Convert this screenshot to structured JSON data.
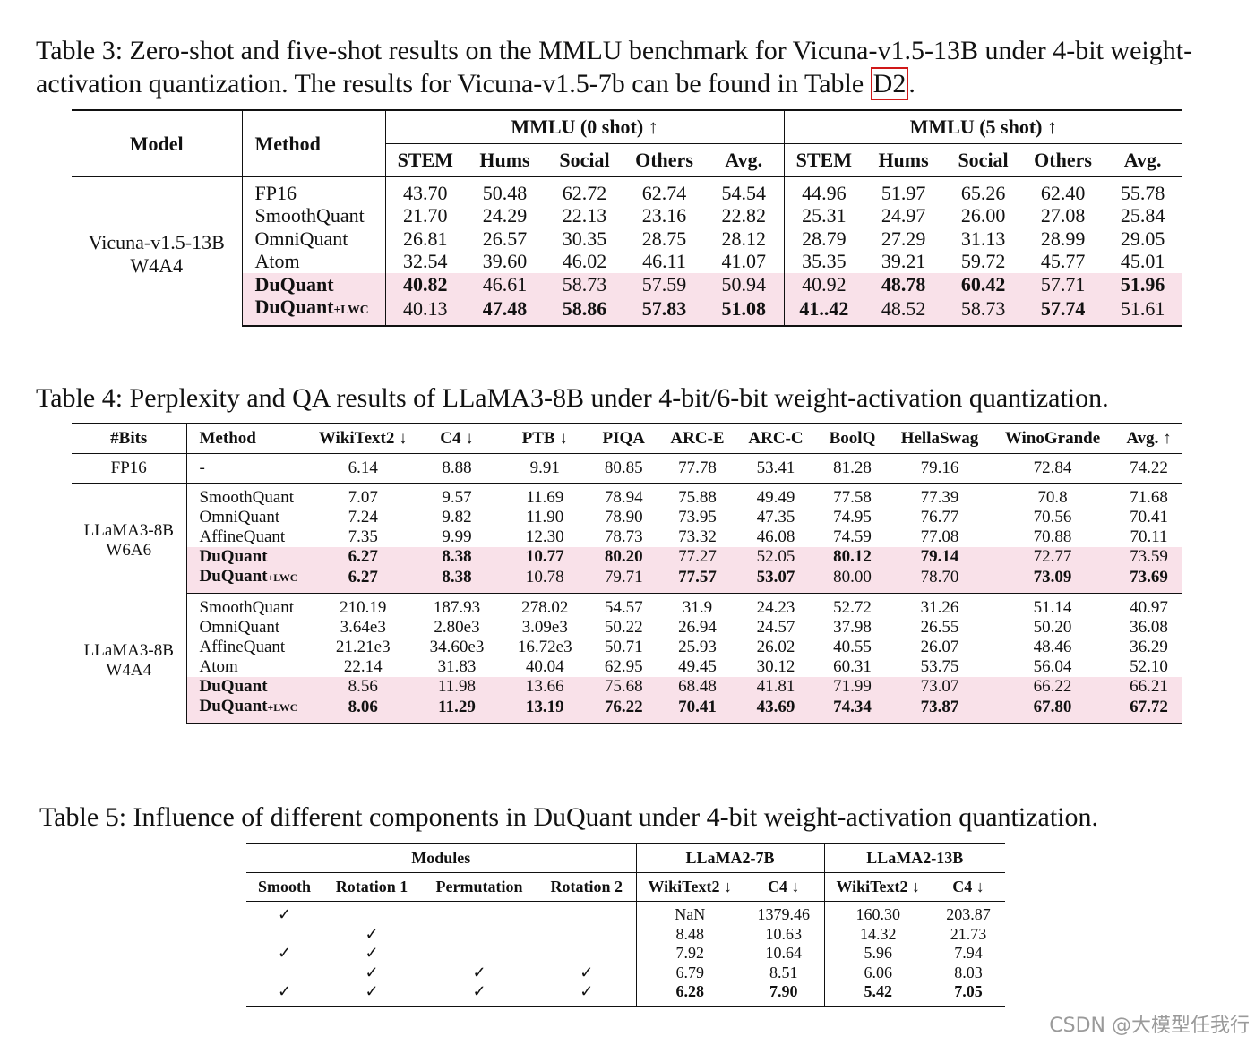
{
  "tables": [
    {
      "caption": "Table 3: Zero-shot and five-shot results on the MMLU benchmark for Vicuna-v1.5-13B under 4-bit weight-activation quantization. The results for Vicuna-v1.5-7b can be found in Table ",
      "caption_link": "D2",
      "caption_end": ".",
      "header": {
        "model": "Model",
        "method": "Method",
        "groups": [
          "MMLU (0 shot) ↑",
          "MMLU (5 shot) ↑"
        ],
        "columns": [
          "STEM",
          "Hums",
          "Social",
          "Others",
          "Avg.",
          "STEM",
          "Hums",
          "Social",
          "Others",
          "Avg."
        ]
      },
      "groups": [
        {
          "label": [
            "Vicuna-v1.5-13B",
            "W4A4"
          ],
          "rows": [
            {
              "method": "FP16",
              "cells": [
                "43.70",
                "50.48",
                "62.72",
                "62.74",
                "54.54",
                "44.96",
                "51.97",
                "65.26",
                "62.40",
                "55.78"
              ]
            },
            {
              "method": "SmoothQuant",
              "cells": [
                "21.70",
                "24.29",
                "22.13",
                "23.16",
                "22.82",
                "25.31",
                "24.97",
                "26.00",
                "27.08",
                "25.84"
              ]
            },
            {
              "method": "OmniQuant",
              "cells": [
                "26.81",
                "26.57",
                "30.35",
                "28.75",
                "28.12",
                "28.79",
                "27.29",
                "31.13",
                "28.99",
                "29.05"
              ]
            },
            {
              "method": "Atom",
              "cells": [
                "32.54",
                "39.60",
                "46.02",
                "46.11",
                "41.07",
                "35.35",
                "39.21",
                "59.72",
                "45.77",
                "45.01"
              ]
            },
            {
              "method": "DuQuant",
              "highlight": true,
              "cells": [
                {
                  "text": "40.82",
                  "bold": true
                },
                "46.61",
                "58.73",
                "57.59",
                "50.94",
                "40.92",
                {
                  "text": "48.78",
                  "bold": true
                },
                {
                  "text": "60.42",
                  "bold": true
                },
                "57.71",
                {
                  "text": "51.96",
                  "bold": true
                }
              ]
            },
            {
              "method": "DuQuant",
              "method_suffix": "+LWC",
              "highlight": true,
              "cells": [
                "40.13",
                {
                  "text": "47.48",
                  "bold": true
                },
                {
                  "text": "58.86",
                  "bold": true
                },
                {
                  "text": "57.83",
                  "bold": true
                },
                {
                  "text": "51.08",
                  "bold": true
                },
                {
                  "text": "41..42",
                  "bold": true
                },
                "48.52",
                "58.73",
                {
                  "text": "57.74",
                  "bold": true
                },
                "51.61"
              ]
            }
          ]
        }
      ]
    },
    {
      "caption": "Table 4: Perplexity and QA results of LLaMA3-8B under 4-bit/6-bit weight-activation quantization.",
      "header": {
        "model": "#Bits",
        "method": "Method",
        "columns": [
          "WikiText2 ↓",
          "C4 ↓",
          "PTB ↓",
          "PIQA",
          "ARC-E",
          "ARC-C",
          "BoolQ",
          "HellaSwag",
          "WinoGrande",
          "Avg. ↑"
        ]
      },
      "groups": [
        {
          "label": [
            "FP16"
          ],
          "rows": [
            {
              "method": "-",
              "cells": [
                "6.14",
                "8.88",
                "9.91",
                "80.85",
                "77.78",
                "53.41",
                "81.28",
                "79.16",
                "72.84",
                "74.22"
              ]
            }
          ]
        },
        {
          "label": [
            "LLaMA3-8B",
            "W6A6"
          ],
          "rows": [
            {
              "method": "SmoothQuant",
              "cells": [
                "7.07",
                "9.57",
                "11.69",
                "78.94",
                "75.88",
                "49.49",
                "77.58",
                "77.39",
                "70.8",
                "71.68"
              ]
            },
            {
              "method": "OmniQuant",
              "cells": [
                "7.24",
                "9.82",
                "11.90",
                "78.90",
                "73.95",
                "47.35",
                "74.95",
                "76.77",
                "70.56",
                "70.41"
              ]
            },
            {
              "method": "AffineQuant",
              "cells": [
                "7.35",
                "9.99",
                "12.30",
                "78.73",
                "73.32",
                "46.08",
                "74.59",
                "77.08",
                "70.88",
                "70.11"
              ]
            },
            {
              "method": "DuQuant",
              "highlight": true,
              "cells": [
                {
                  "text": "6.27",
                  "bold": true
                },
                {
                  "text": "8.38",
                  "bold": true
                },
                {
                  "text": "10.77",
                  "bold": true
                },
                {
                  "text": "80.20",
                  "bold": true
                },
                "77.27",
                "52.05",
                {
                  "text": "80.12",
                  "bold": true
                },
                {
                  "text": "79.14",
                  "bold": true
                },
                "72.77",
                "73.59"
              ]
            },
            {
              "method": "DuQuant",
              "method_suffix": "+LWC",
              "highlight": true,
              "cells": [
                {
                  "text": "6.27",
                  "bold": true
                },
                {
                  "text": "8.38",
                  "bold": true
                },
                "10.78",
                "79.71",
                {
                  "text": "77.57",
                  "bold": true
                },
                {
                  "text": "53.07",
                  "bold": true
                },
                "80.00",
                "78.70",
                {
                  "text": "73.09",
                  "bold": true
                },
                {
                  "text": "73.69",
                  "bold": true
                }
              ]
            }
          ]
        },
        {
          "label": [
            "LLaMA3-8B",
            "W4A4"
          ],
          "rows": [
            {
              "method": "SmoothQuant",
              "cells": [
                "210.19",
                "187.93",
                "278.02",
                "54.57",
                "31.9",
                "24.23",
                "52.72",
                "31.26",
                "51.14",
                "40.97"
              ]
            },
            {
              "method": "OmniQuant",
              "cells": [
                "3.64e3",
                "2.80e3",
                "3.09e3",
                "50.22",
                "26.94",
                "24.57",
                "37.98",
                "26.55",
                "50.20",
                "36.08"
              ]
            },
            {
              "method": "AffineQuant",
              "cells": [
                "21.21e3",
                "34.60e3",
                "16.72e3",
                "50.71",
                "25.93",
                "26.02",
                "40.55",
                "26.07",
                "48.46",
                "36.29"
              ]
            },
            {
              "method": "Atom",
              "cells": [
                "22.14",
                "31.83",
                "40.04",
                "62.95",
                "49.45",
                "30.12",
                "60.31",
                "53.75",
                "56.04",
                "52.10"
              ]
            },
            {
              "method": "DuQuant",
              "highlight": true,
              "cells": [
                "8.56",
                "11.98",
                "13.66",
                "75.68",
                "68.48",
                "41.81",
                "71.99",
                "73.07",
                "66.22",
                "66.21"
              ]
            },
            {
              "method": "DuQuant",
              "method_suffix": "+LWC",
              "highlight": true,
              "cells": [
                {
                  "text": "8.06",
                  "bold": true
                },
                {
                  "text": "11.29",
                  "bold": true
                },
                {
                  "text": "13.19",
                  "bold": true
                },
                {
                  "text": "76.22",
                  "bold": true
                },
                {
                  "text": "70.41",
                  "bold": true
                },
                {
                  "text": "43.69",
                  "bold": true
                },
                {
                  "text": "74.34",
                  "bold": true
                },
                {
                  "text": "73.87",
                  "bold": true
                },
                {
                  "text": "67.80",
                  "bold": true
                },
                {
                  "text": "67.72",
                  "bold": true
                }
              ]
            }
          ]
        }
      ]
    },
    {
      "caption": "Table 5: Influence of different components in DuQuant under 4-bit weight-activation quantization.",
      "header": {
        "groups": [
          "Modules",
          "LLaMA2-7B",
          "LLaMA2-13B"
        ],
        "columns": [
          "Smooth",
          "Rotation 1",
          "Permutation",
          "Rotation 2",
          "WikiText2 ↓",
          "C4 ↓",
          "WikiText2 ↓",
          "C4 ↓"
        ]
      },
      "rows": [
        {
          "cells": [
            "✓",
            null,
            null,
            null,
            "NaN",
            "1379.46",
            "160.30",
            "203.87"
          ]
        },
        {
          "cells": [
            null,
            "✓",
            null,
            null,
            "8.48",
            "10.63",
            "14.32",
            "21.73"
          ]
        },
        {
          "cells": [
            "✓",
            "✓",
            null,
            null,
            "7.92",
            "10.64",
            "5.96",
            "7.94"
          ]
        },
        {
          "cells": [
            null,
            "✓",
            "✓",
            "✓",
            "6.79",
            "8.51",
            "6.06",
            "8.03"
          ]
        },
        {
          "cells": [
            "✓",
            "✓",
            "✓",
            "✓",
            {
              "text": "6.28",
              "bold": true
            },
            {
              "text": "7.90",
              "bold": true
            },
            {
              "text": "5.42",
              "bold": true
            },
            {
              "text": "7.05",
              "bold": true
            }
          ]
        }
      ]
    }
  ],
  "watermark": "CSDN @大模型任我行"
}
